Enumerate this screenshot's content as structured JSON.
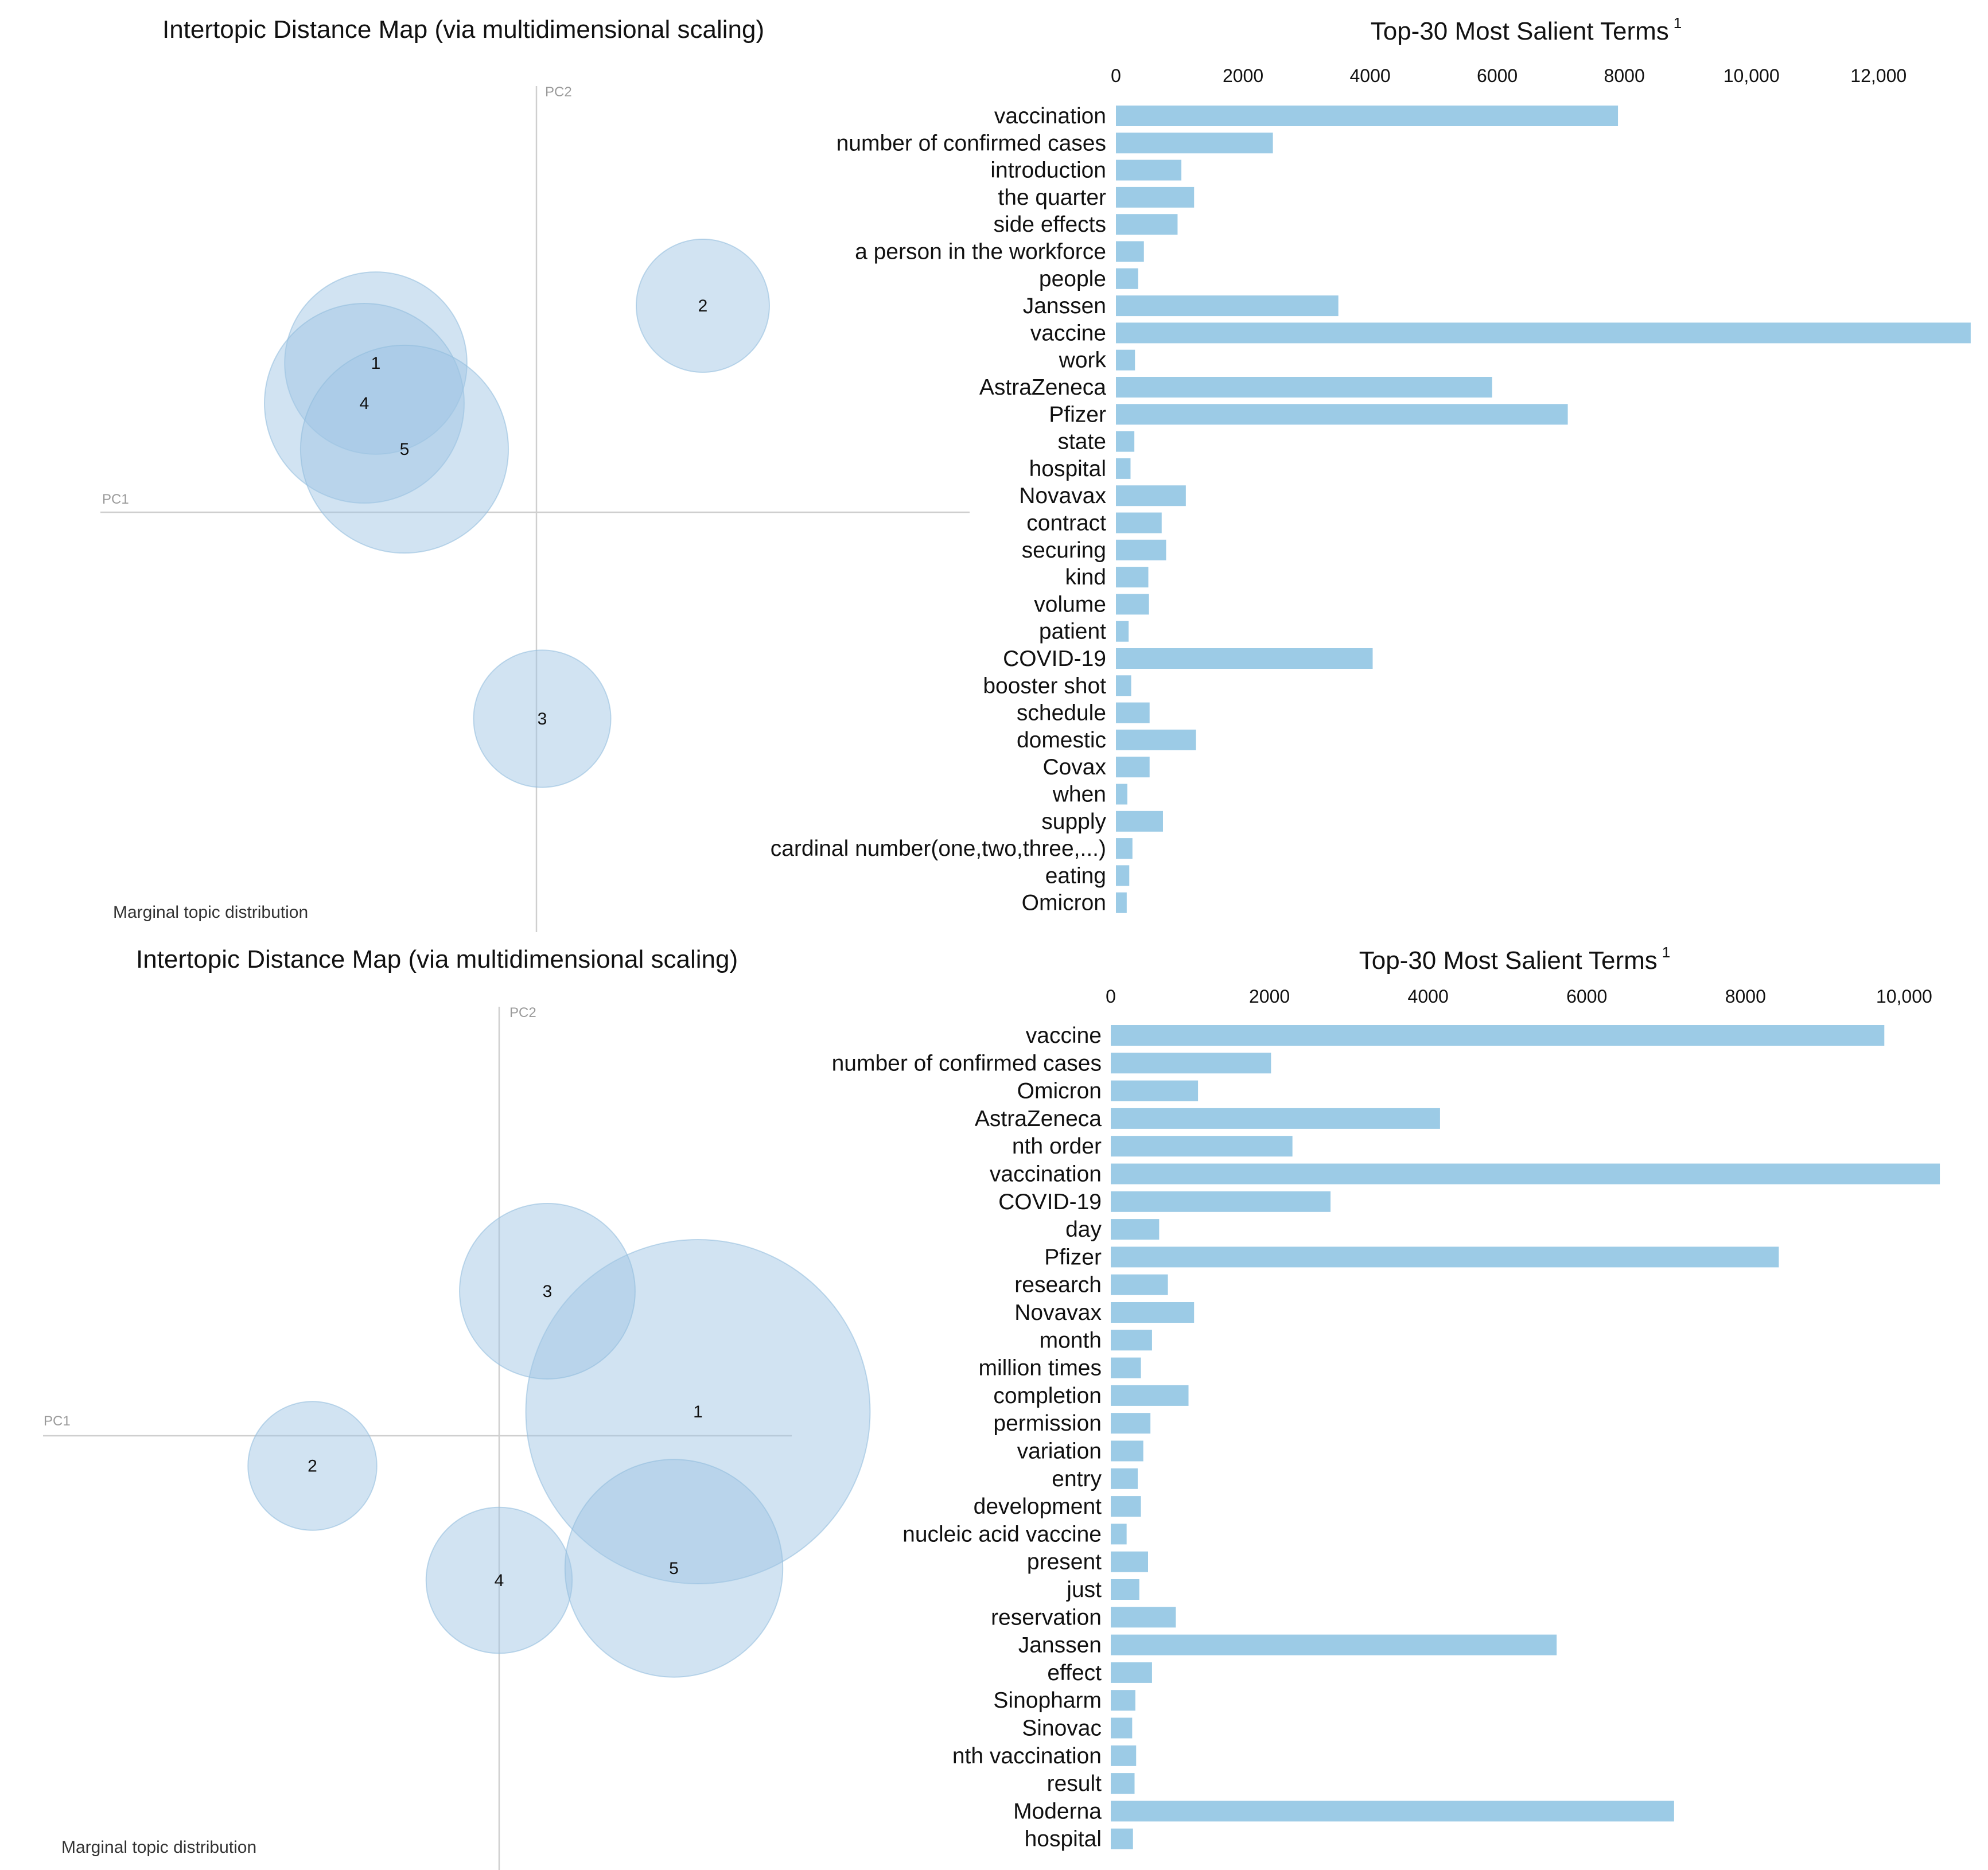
{
  "chart_data": [
    {
      "type": "bar",
      "orientation": "horizontal",
      "map_title": "Intertopic Distance Map (via multidimensional scaling)",
      "title": "Top-30 Most Salient Terms",
      "title_superscript": "1",
      "axis_tag_pc1": "PC1",
      "axis_tag_pc2": "PC2",
      "marginal_label": "Marginal topic distribution",
      "xlim": [
        0,
        13000
      ],
      "ticks": [
        0,
        2000,
        4000,
        6000,
        8000,
        10000,
        12000
      ],
      "tick_labels": [
        "0",
        "2000",
        "4000",
        "6000",
        "8000",
        "10,000",
        "12,000"
      ],
      "topics": [
        {
          "id": "1",
          "pc1": -0.28,
          "pc2": 0.26,
          "size": 0.3
        },
        {
          "id": "2",
          "pc1": 0.29,
          "pc2": 0.36,
          "size": 0.16
        },
        {
          "id": "3",
          "pc1": 0.01,
          "pc2": -0.36,
          "size": 0.17
        },
        {
          "id": "4",
          "pc1": -0.3,
          "pc2": 0.19,
          "size": 0.36
        },
        {
          "id": "5",
          "pc1": -0.23,
          "pc2": 0.11,
          "size": 0.39
        }
      ],
      "categories": [
        "vaccination",
        "number of confirmed cases",
        "introduction",
        "the quarter",
        "side effects",
        "a person in the workforce",
        "people",
        "Janssen",
        "vaccine",
        "work",
        "AstraZeneca",
        "Pfizer",
        "state",
        "hospital",
        "Novavax",
        "contract",
        "securing",
        "kind",
        "volume",
        "patient",
        "COVID-19",
        "booster shot",
        "schedule",
        "domestic",
        "Covax",
        "when",
        "supply",
        "cardinal number(one,two,three,...)",
        "eating",
        "Omicron"
      ],
      "values": [
        7900,
        2470,
        1030,
        1230,
        970,
        440,
        350,
        3500,
        13450,
        300,
        5920,
        7110,
        290,
        230,
        1100,
        720,
        790,
        510,
        520,
        200,
        4040,
        240,
        530,
        1260,
        530,
        180,
        740,
        260,
        210,
        170
      ]
    },
    {
      "type": "bar",
      "orientation": "horizontal",
      "map_title": "Intertopic Distance Map (via multidimensional scaling)",
      "title": "Top-30 Most Salient Terms",
      "title_superscript": "1",
      "axis_tag_pc1": "PC1",
      "axis_tag_pc2": "PC2",
      "marginal_label": "Marginal topic distribution",
      "xlim": [
        0,
        10500
      ],
      "ticks": [
        0,
        2000,
        4000,
        6000,
        8000,
        10000
      ],
      "tick_labels": [
        "0",
        "2000",
        "4000",
        "6000",
        "8000",
        "10,000"
      ],
      "topics": [
        {
          "id": "1",
          "pc1": 0.33,
          "pc2": 0.04,
          "size": 1.0
        },
        {
          "id": "2",
          "pc1": -0.31,
          "pc2": -0.05,
          "size": 0.14
        },
        {
          "id": "3",
          "pc1": 0.08,
          "pc2": 0.24,
          "size": 0.26
        },
        {
          "id": "4",
          "pc1": 0.0,
          "pc2": -0.24,
          "size": 0.18
        },
        {
          "id": "5",
          "pc1": 0.29,
          "pc2": -0.22,
          "size": 0.4
        }
      ],
      "categories": [
        "vaccine",
        "number of confirmed cases",
        "Omicron",
        "AstraZeneca",
        "nth order",
        "vaccination",
        "COVID-19",
        "day",
        "Pfizer",
        "research",
        "Novavax",
        "month",
        "million times",
        "completion",
        "permission",
        "variation",
        "entry",
        "development",
        "nucleic acid vaccine",
        "present",
        "just",
        "reservation",
        "Janssen",
        "effect",
        "Sinopharm",
        "Sinovac",
        "nth vaccination",
        "result",
        "Moderna",
        "hospital"
      ],
      "values": [
        9750,
        2020,
        1100,
        4150,
        2290,
        10450,
        2770,
        610,
        8420,
        720,
        1050,
        520,
        380,
        980,
        500,
        410,
        340,
        380,
        200,
        470,
        360,
        820,
        5620,
        520,
        310,
        270,
        320,
        300,
        7100,
        280
      ]
    }
  ]
}
